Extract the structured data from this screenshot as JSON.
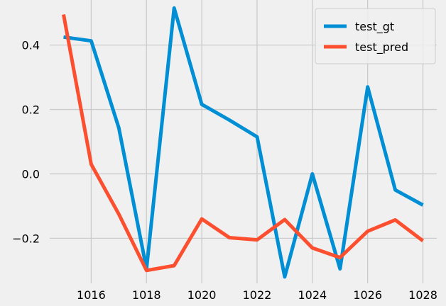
{
  "chart_data": {
    "type": "line",
    "title": "",
    "xlabel": "",
    "ylabel": "",
    "xlim": [
      1014.5,
      1028.5
    ],
    "ylim": [
      -0.34,
      0.54
    ],
    "xticks": [
      1016,
      1018,
      1020,
      1022,
      1024,
      1026,
      1028
    ],
    "yticks": [
      -0.2,
      0.0,
      0.2,
      0.4
    ],
    "grid": true,
    "legend_position": "top-right",
    "x": [
      1015,
      1016,
      1017,
      1018,
      1019,
      1020,
      1021,
      1022,
      1023,
      1024,
      1025,
      1026,
      1027,
      1028
    ],
    "series": [
      {
        "name": "test_gt",
        "color": "#008fd5",
        "values": [
          0.425,
          0.413,
          0.143,
          -0.295,
          0.515,
          0.216,
          0.167,
          0.115,
          -0.32,
          0.0,
          -0.295,
          0.27,
          -0.05,
          -0.097
        ]
      },
      {
        "name": "test_pred",
        "color": "#fc4f30",
        "values": [
          0.495,
          0.03,
          -0.125,
          -0.3,
          -0.285,
          -0.14,
          -0.198,
          -0.205,
          -0.142,
          -0.23,
          -0.26,
          -0.178,
          -0.143,
          -0.208
        ]
      }
    ]
  }
}
